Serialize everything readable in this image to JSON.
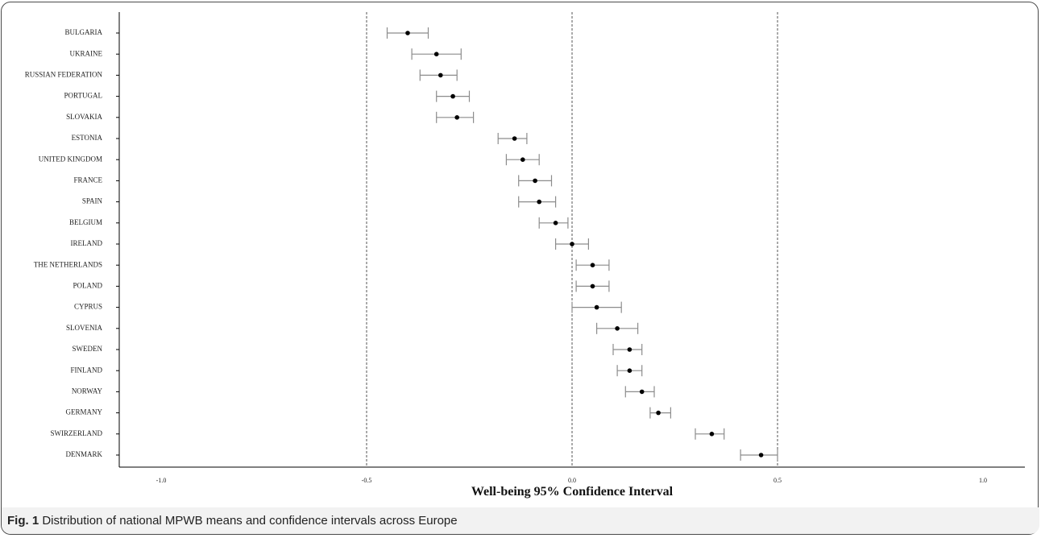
{
  "caption": {
    "fig_label": "Fig. 1",
    "text": "Distribution of national MPWB means and confidence intervals across Europe"
  },
  "chart_data": {
    "type": "forest",
    "xlabel": "Well-being 95% Confidence Interval",
    "ylabel": "",
    "title": "",
    "xlim": [
      -1.1,
      1.1
    ],
    "xticks": [
      -1.0,
      -0.5,
      0.0,
      0.5,
      1.0
    ],
    "xtick_labels": [
      "-1.0",
      "-0.5",
      "0.0",
      "0.5",
      "1.0"
    ],
    "reference_lines": [
      -0.5,
      0.0,
      0.5
    ],
    "grid": false,
    "colors": {
      "point": "#000000",
      "interval": "#8c8c8c",
      "reference": "#555555",
      "axis": "#000000"
    },
    "categories": [
      "BULGARIA",
      "UKRAINE",
      "RUSSIAN FEDERATION",
      "PORTUGAL",
      "SLOVAKIA",
      "ESTONIA",
      "UNITED KINGDOM",
      "FRANCE",
      "SPAIN",
      "BELGIUM",
      "IRELAND",
      "THE NETHERLANDS",
      "POLAND",
      "CYPRUS",
      "SLOVENIA",
      "SWEDEN",
      "FINLAND",
      "NORWAY",
      "GERMANY",
      "SWIRZERLAND",
      "DENMARK"
    ],
    "means": [
      -0.4,
      -0.33,
      -0.32,
      -0.29,
      -0.28,
      -0.14,
      -0.12,
      -0.09,
      -0.08,
      -0.04,
      0.0,
      0.05,
      0.05,
      0.06,
      0.11,
      0.14,
      0.14,
      0.17,
      0.21,
      0.34,
      0.46
    ],
    "lower": [
      -0.45,
      -0.39,
      -0.37,
      -0.33,
      -0.33,
      -0.18,
      -0.16,
      -0.13,
      -0.13,
      -0.08,
      -0.04,
      0.01,
      0.01,
      0.0,
      0.06,
      0.1,
      0.11,
      0.13,
      0.19,
      0.3,
      0.41
    ],
    "upper": [
      -0.35,
      -0.27,
      -0.28,
      -0.25,
      -0.24,
      -0.11,
      -0.08,
      -0.05,
      -0.04,
      -0.01,
      0.04,
      0.09,
      0.09,
      0.12,
      0.16,
      0.17,
      0.17,
      0.2,
      0.24,
      0.37,
      0.5
    ]
  }
}
